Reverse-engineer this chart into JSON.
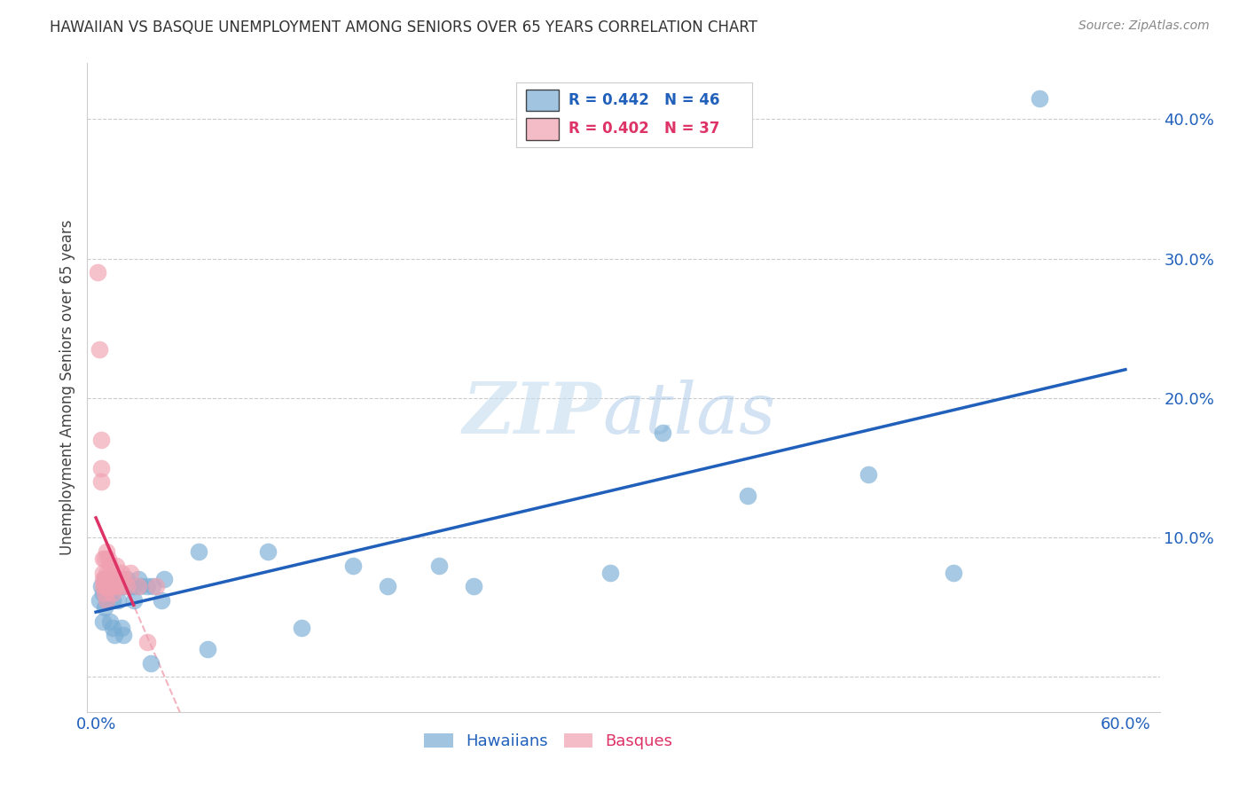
{
  "title": "HAWAIIAN VS BASQUE UNEMPLOYMENT AMONG SENIORS OVER 65 YEARS CORRELATION CHART",
  "source": "Source: ZipAtlas.com",
  "ylabel": "Unemployment Among Seniors over 65 years",
  "xlabel_hawaiians": "Hawaiians",
  "xlabel_basques": "Basques",
  "xlim": [
    -0.005,
    0.62
  ],
  "ylim": [
    -0.025,
    0.44
  ],
  "hawaiians_R": 0.442,
  "hawaiians_N": 46,
  "basques_R": 0.402,
  "basques_N": 37,
  "hawaiians_color": "#7aadd4",
  "basques_color": "#f0a0b0",
  "hawaiians_line_color": "#2060bb",
  "basques_line_color": "#dd3366",
  "hawaiians_scatter": [
    [
      0.002,
      0.055
    ],
    [
      0.003,
      0.065
    ],
    [
      0.004,
      0.04
    ],
    [
      0.004,
      0.06
    ],
    [
      0.005,
      0.05
    ],
    [
      0.005,
      0.07
    ],
    [
      0.006,
      0.055
    ],
    [
      0.007,
      0.07
    ],
    [
      0.008,
      0.06
    ],
    [
      0.008,
      0.04
    ],
    [
      0.009,
      0.065
    ],
    [
      0.01,
      0.055
    ],
    [
      0.01,
      0.035
    ],
    [
      0.011,
      0.03
    ],
    [
      0.012,
      0.065
    ],
    [
      0.013,
      0.055
    ],
    [
      0.014,
      0.07
    ],
    [
      0.015,
      0.065
    ],
    [
      0.015,
      0.035
    ],
    [
      0.016,
      0.03
    ],
    [
      0.017,
      0.065
    ],
    [
      0.018,
      0.07
    ],
    [
      0.02,
      0.065
    ],
    [
      0.022,
      0.055
    ],
    [
      0.022,
      0.065
    ],
    [
      0.025,
      0.07
    ],
    [
      0.026,
      0.065
    ],
    [
      0.03,
      0.065
    ],
    [
      0.032,
      0.01
    ],
    [
      0.033,
      0.065
    ],
    [
      0.038,
      0.055
    ],
    [
      0.04,
      0.07
    ],
    [
      0.06,
      0.09
    ],
    [
      0.065,
      0.02
    ],
    [
      0.1,
      0.09
    ],
    [
      0.12,
      0.035
    ],
    [
      0.15,
      0.08
    ],
    [
      0.17,
      0.065
    ],
    [
      0.2,
      0.08
    ],
    [
      0.22,
      0.065
    ],
    [
      0.3,
      0.075
    ],
    [
      0.33,
      0.175
    ],
    [
      0.38,
      0.13
    ],
    [
      0.45,
      0.145
    ],
    [
      0.5,
      0.075
    ],
    [
      0.55,
      0.415
    ]
  ],
  "basques_scatter": [
    [
      0.001,
      0.29
    ],
    [
      0.002,
      0.235
    ],
    [
      0.003,
      0.17
    ],
    [
      0.003,
      0.15
    ],
    [
      0.003,
      0.14
    ],
    [
      0.004,
      0.085
    ],
    [
      0.004,
      0.075
    ],
    [
      0.004,
      0.07
    ],
    [
      0.004,
      0.065
    ],
    [
      0.005,
      0.085
    ],
    [
      0.005,
      0.07
    ],
    [
      0.005,
      0.065
    ],
    [
      0.005,
      0.06
    ],
    [
      0.006,
      0.09
    ],
    [
      0.006,
      0.075
    ],
    [
      0.006,
      0.065
    ],
    [
      0.006,
      0.055
    ],
    [
      0.007,
      0.085
    ],
    [
      0.007,
      0.07
    ],
    [
      0.007,
      0.065
    ],
    [
      0.008,
      0.08
    ],
    [
      0.008,
      0.065
    ],
    [
      0.009,
      0.075
    ],
    [
      0.01,
      0.07
    ],
    [
      0.01,
      0.06
    ],
    [
      0.011,
      0.065
    ],
    [
      0.012,
      0.08
    ],
    [
      0.012,
      0.065
    ],
    [
      0.013,
      0.07
    ],
    [
      0.015,
      0.075
    ],
    [
      0.015,
      0.065
    ],
    [
      0.016,
      0.07
    ],
    [
      0.018,
      0.065
    ],
    [
      0.02,
      0.075
    ],
    [
      0.025,
      0.065
    ],
    [
      0.03,
      0.025
    ],
    [
      0.035,
      0.065
    ]
  ],
  "watermark_zip": "ZIP",
  "watermark_atlas": "atlas",
  "grid_color": "#cccccc",
  "background_color": "#ffffff",
  "legend_box_color": "#ffffff",
  "legend_border_color": "#dddddd"
}
